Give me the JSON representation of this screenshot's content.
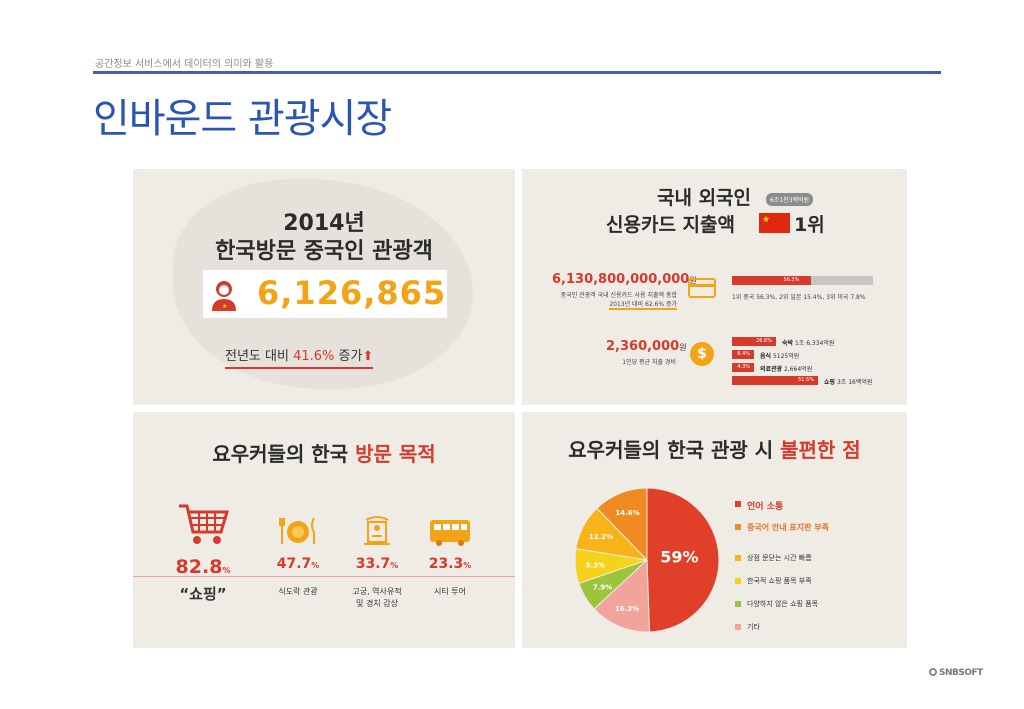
{
  "header": {
    "subtitle": "공간정보 서비스에서 데이터의 의미와 활용",
    "title": "인바운드 관광시장"
  },
  "panel1": {
    "year": "2014년",
    "subtitle": "한국방문 중국인 관광객",
    "visitors": "6,126,865",
    "growth_prefix": "전년도 대비 ",
    "growth_value": "41.6%",
    "growth_suffix": " 증가",
    "growth_arrow": "⬆"
  },
  "panel2": {
    "title_line1": "국내 외국인",
    "title_line2": "신용카드 지출액",
    "rank": "1위",
    "badge": "6조1천3백억원",
    "total_amount": "6,130,800,000,000",
    "total_unit": "원",
    "total_desc_1": "중국인 관광객 국내 신용카드 사용 지출액 총합",
    "total_desc_2": "2013년 대비 62.6% 증가",
    "share_bar_label": "56.3%",
    "share_bar_fraction": 0.563,
    "rank_desc": "1위 중국 56.3%, 2위 일본 15.4%, 3위 미국 7.8%",
    "per_person_amount": "2,360,000",
    "per_person_unit": "원",
    "per_person_desc": "1인당 평균 지출 경비",
    "spending": [
      {
        "pct": "26.6%",
        "fraction": 0.266,
        "category": "숙박",
        "amount": "1조 6,334억원"
      },
      {
        "pct": "8.4%",
        "fraction": 0.084,
        "category": "음식",
        "amount": "5125억원"
      },
      {
        "pct": "4.3%",
        "fraction": 0.043,
        "category": "의료관광",
        "amount": "2,664억원"
      },
      {
        "pct": "51.5%",
        "fraction": 0.515,
        "category": "쇼핑",
        "amount": "3조 16백억원"
      }
    ],
    "colors": {
      "red": "#d63a2a",
      "track": "#c9c6c1",
      "flag": "#de2910",
      "star": "#ffde00"
    }
  },
  "panel3": {
    "title_pre": "요우커들의 한국 ",
    "title_red": "방문 목적",
    "purposes": [
      {
        "icon": "shopping-cart-icon",
        "value": "82.8",
        "unit": "%",
        "label": "“쇼핑”"
      },
      {
        "icon": "dining-icon",
        "value": "47.7",
        "unit": "%",
        "label": "식도락 관광"
      },
      {
        "icon": "palace-icon",
        "value": "33.7",
        "unit": "%",
        "label": "고궁, 역사유적\n및 경치 감상"
      },
      {
        "icon": "bus-icon",
        "value": "23.3",
        "unit": "%",
        "label": "시티 투어"
      }
    ]
  },
  "panel4": {
    "title_pre": "요우커들의 한국 관광 시 ",
    "title_red": "불편한 점",
    "chart_data": {
      "type": "pie",
      "title": "요우커들의 한국 관광 시 불편한 점",
      "slices": [
        {
          "label": "언어 소통",
          "value": 59,
          "display": "59%",
          "color": "#e0402a"
        },
        {
          "label": "기타",
          "value": 16.3,
          "display": "16.3%",
          "color": "#f2a39a"
        },
        {
          "label": "다양하지 않은 쇼핑 품목",
          "value": 7.9,
          "display": "7.9%",
          "color": "#9cc43c"
        },
        {
          "label": "한국적 쇼핑 품목 부족",
          "value": 9.3,
          "display": "9.3%",
          "color": "#f6d21a"
        },
        {
          "label": "상점 문닫는 시간 빠름",
          "value": 12.2,
          "display": "12.2%",
          "color": "#f7b318"
        },
        {
          "label": "중국어 안내 표지판 부족",
          "value": 14.6,
          "display": "14.6%",
          "color": "#f08a22"
        }
      ]
    },
    "legend": [
      {
        "label": "언어 소통",
        "color": "#e0402a"
      },
      {
        "label": "중국어 안내 표지판 부족",
        "color": "#f08a22"
      },
      {
        "label": "상점 문닫는 시간 빠름",
        "color": "#f7b318"
      },
      {
        "label": "한국적 쇼핑 품목 부족",
        "color": "#f6d21a"
      },
      {
        "label": "다양하지 않은 쇼핑 품목",
        "color": "#9cc43c"
      },
      {
        "label": "기타",
        "color": "#f2a39a"
      }
    ]
  },
  "footer": {
    "logo": "SNBSOFT"
  }
}
